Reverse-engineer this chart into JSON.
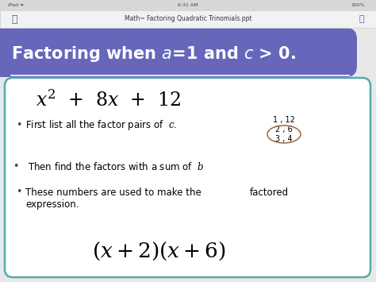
{
  "bg_top": "#cccccc",
  "bg_main": "#e8e8e8",
  "header_color": "#6666bb",
  "content_bg": "#ffffff",
  "border_color": "#55aaaa",
  "title_color": "#ffffff",
  "status_bar_text": "Math~ Factoring Quadratic Trinomials.ppt",
  "pairs_line1": "1 , 12",
  "pairs_line2": "2 , 6",
  "pairs_line3": "3 , 4",
  "ellipse_color": "#888866",
  "figw": 4.74,
  "figh": 3.55,
  "dpi": 100
}
